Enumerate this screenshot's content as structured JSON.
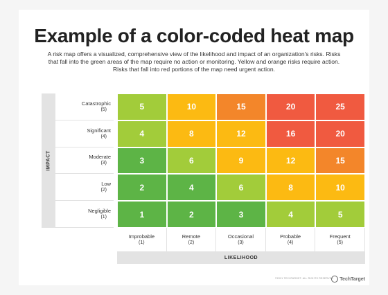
{
  "title": "Example of a color-coded heat map",
  "description": "A risk map offers a visualized, comprehensive view of the likelihood and impact of an organization's risks. Risks that fall into the green areas of the map require no action or monitoring. Yellow and orange risks require action. Risks that fall into red portions of the map need urgent action.",
  "y_axis_label": "IMPACT",
  "x_axis_label": "LIKELIHOOD",
  "rows": [
    {
      "label": "Catastrophic",
      "sub": "(5)"
    },
    {
      "label": "Significant",
      "sub": "(4)"
    },
    {
      "label": "Moderate",
      "sub": "(3)"
    },
    {
      "label": "Low",
      "sub": "(2)"
    },
    {
      "label": "Negligible",
      "sub": "(1)"
    }
  ],
  "columns": [
    {
      "label": "Improbable",
      "sub": "(1)"
    },
    {
      "label": "Remote",
      "sub": "(2)"
    },
    {
      "label": "Occasional",
      "sub": "(3)"
    },
    {
      "label": "Probable",
      "sub": "(4)"
    },
    {
      "label": "Frequent",
      "sub": "(5)"
    }
  ],
  "colors": {
    "dark_green": "#5db446",
    "light_green": "#a2cc3a",
    "yellow": "#fcba12",
    "orange": "#f3862a",
    "red": "#f05a40"
  },
  "cells": [
    [
      {
        "value": "5",
        "color": "light_green"
      },
      {
        "value": "10",
        "color": "yellow"
      },
      {
        "value": "15",
        "color": "orange"
      },
      {
        "value": "20",
        "color": "red"
      },
      {
        "value": "25",
        "color": "red"
      }
    ],
    [
      {
        "value": "4",
        "color": "light_green"
      },
      {
        "value": "8",
        "color": "yellow"
      },
      {
        "value": "12",
        "color": "yellow"
      },
      {
        "value": "16",
        "color": "red"
      },
      {
        "value": "20",
        "color": "red"
      }
    ],
    [
      {
        "value": "3",
        "color": "dark_green"
      },
      {
        "value": "6",
        "color": "light_green"
      },
      {
        "value": "9",
        "color": "yellow"
      },
      {
        "value": "12",
        "color": "yellow"
      },
      {
        "value": "15",
        "color": "orange"
      }
    ],
    [
      {
        "value": "2",
        "color": "dark_green"
      },
      {
        "value": "4",
        "color": "dark_green"
      },
      {
        "value": "6",
        "color": "light_green"
      },
      {
        "value": "8",
        "color": "yellow"
      },
      {
        "value": "10",
        "color": "yellow"
      }
    ],
    [
      {
        "value": "1",
        "color": "dark_green"
      },
      {
        "value": "2",
        "color": "dark_green"
      },
      {
        "value": "3",
        "color": "dark_green"
      },
      {
        "value": "4",
        "color": "light_green"
      },
      {
        "value": "5",
        "color": "light_green"
      }
    ]
  ],
  "copyright": "©2021 TECHTARGET. ALL RIGHTS RESERVED",
  "logo": "TechTarget"
}
